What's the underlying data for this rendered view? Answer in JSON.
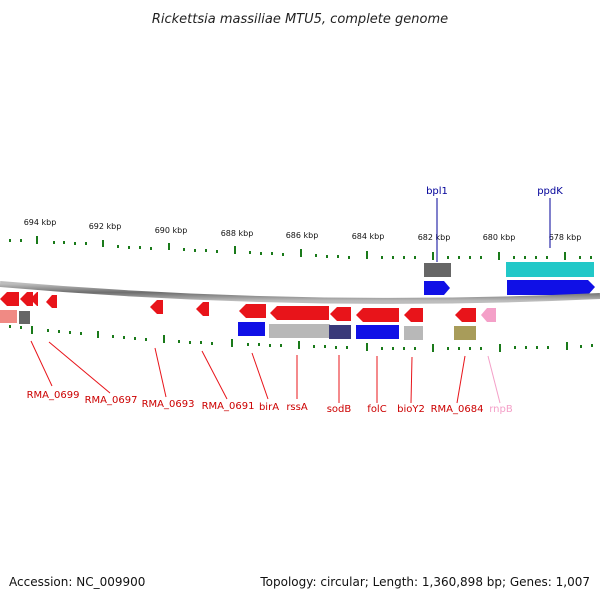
{
  "title": "Rickettsia massiliae MTU5, complete genome",
  "footer": {
    "accession": "Accession: NC_009900",
    "summary": "Topology: circular; Length: 1,360,898 bp; Genes: 1,007"
  },
  "axis": {
    "unit": "kbp",
    "ticks": [
      "694 kbp",
      "692 kbp",
      "690 kbp",
      "688 kbp",
      "686 kbp",
      "684 kbp",
      "682 kbp",
      "680 kbp",
      "678 kbp"
    ]
  },
  "top_labels": [
    "bpl1",
    "ppdK"
  ],
  "bottom_labels": [
    "RMA_0699",
    "RMA_0697",
    "RMA_0693",
    "RMA_0691",
    "birA",
    "rssA",
    "sodB",
    "folC",
    "bioY2",
    "RMA_0684",
    "rnpB"
  ],
  "colors": {
    "gene_red": "#e8141a",
    "cog_blue": "#1010e6",
    "cog_cyan": "#22c8c8",
    "cog_gray": "#666666",
    "cog_lightgray": "#b8b8b8",
    "cog_navy": "#3a3a7a",
    "cog_olive": "#a89c5a",
    "cog_salmon": "#f08a84",
    "rna_pink": "#f4a0c8",
    "tick_green": "#1a7a1a",
    "label_red": "#cc0000",
    "label_blue": "#000099"
  }
}
